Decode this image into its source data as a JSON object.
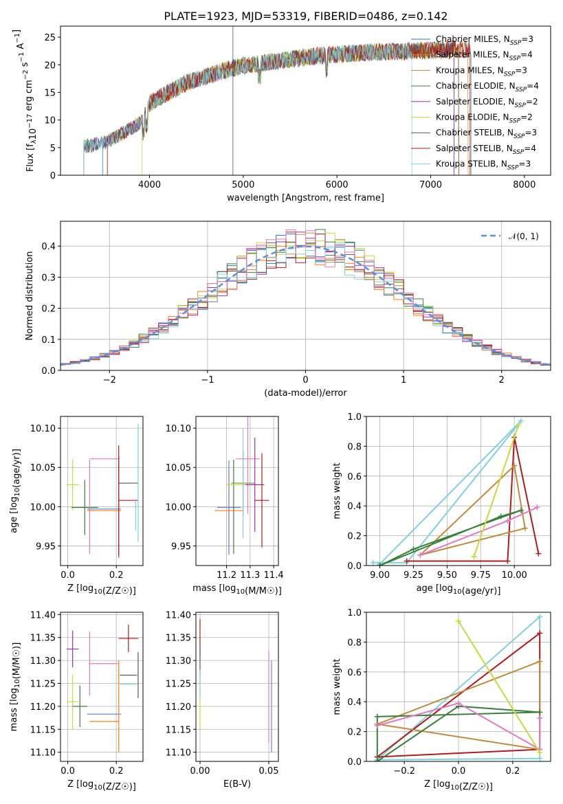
{
  "colors": {
    "chabrier_miles": "#1f77b4",
    "salpeter_miles": "#ff7f0e",
    "kroupa_miles": "#bf8a3a",
    "chabrier_elodie": "#3a7f3a",
    "salpeter_elodie": "#9b2fae",
    "kroupa_elodie": "#c8d93c",
    "chabrier_stelib": "#555555",
    "salpeter_stelib": "#b01b1b",
    "kroupa_stelib": "#7fd0de",
    "gauss": "#5b8fd8",
    "pink": "#e377c2",
    "olive": "#6d8f3a",
    "blue2": "#6f86d6"
  },
  "title": "PLATE=1923, MJD=53319, FIBERID=0486, z=0.142",
  "chart_data": [
    {
      "type": "line",
      "xlabel": "wavelength [Angstrom, rest frame]",
      "ylabel": "Flux [f_λ10^-17 erg cm^-2 s^-1 A^-1]",
      "xlim": [
        3050,
        8280
      ],
      "ylim": [
        0,
        27
      ],
      "xticks": [
        "4000",
        "5000",
        "6000",
        "7000",
        "8000"
      ],
      "yticks": [
        "0",
        "5",
        "10",
        "15",
        "20",
        "25"
      ],
      "legend_position": "top-right",
      "series": [
        {
          "name": "Chabrier MILES, N_SSP=3",
          "color": "chabrier_miles"
        },
        {
          "name": "Salpeter MILES, N_SSP=4",
          "color": "salpeter_miles"
        },
        {
          "name": "Kroupa MILES, N_SSP=3",
          "color": "kroupa_miles"
        },
        {
          "name": "Chabrier ELODIE, N_SSP=4",
          "color": "chabrier_elodie"
        },
        {
          "name": "Salpeter ELODIE, N_SSP=2",
          "color": "salpeter_elodie"
        },
        {
          "name": "Kroupa ELODIE, N_SSP=2",
          "color": "kroupa_elodie"
        },
        {
          "name": "Chabrier STELIB, N_SSP=3",
          "color": "chabrier_stelib"
        },
        {
          "name": "Salpeter STELIB, N_SSP=4",
          "color": "salpeter_stelib"
        },
        {
          "name": "Kroupa STELIB, N_SSP=3",
          "color": "kroupa_stelib"
        }
      ],
      "continuum": {
        "x": [
          3300,
          3500,
          3600,
          3750,
          3900,
          4000,
          4200,
          4400,
          4600,
          4800,
          5000,
          5200,
          5500,
          5800,
          6100,
          6400,
          6700,
          7000,
          7200
        ],
        "y": [
          5.2,
          5.8,
          6.5,
          8.0,
          9.5,
          13.0,
          15.0,
          16.8,
          17.8,
          19.0,
          19.8,
          20.3,
          21.0,
          21.6,
          22.0,
          22.3,
          22.4,
          22.6,
          22.8
        ]
      }
    },
    {
      "type": "histogram",
      "xlabel": "(data-model)/error",
      "ylabel": "Normed distribution",
      "xlim": [
        -2.5,
        2.5
      ],
      "ylim": [
        0,
        0.48
      ],
      "xticks": [
        "−2",
        "−1",
        "0",
        "1",
        "2"
      ],
      "yticks": [
        "0.0",
        "0.1",
        "0.2",
        "0.3",
        "0.4"
      ],
      "legend": "𝒩(0, 1)",
      "legend_position": "top-right",
      "bin_width": 0.1,
      "gaussian": {
        "mu": 0,
        "sigma": 1
      }
    },
    {
      "type": "scatter",
      "xlabel": "Z [log10(Z/Z☉)]",
      "ylabel": "age  [log10(age/yr)]",
      "xlim": [
        -0.03,
        0.31
      ],
      "ylim": [
        9.925,
        10.115
      ],
      "xticks": [
        0.0,
        0.2
      ],
      "yticks": [
        9.95,
        10.0,
        10.05,
        10.1
      ],
      "points": [
        {
          "x": 0.02,
          "y": 10.028,
          "xerr": 0.025,
          "yerr": 0.032,
          "color": "kroupa_elodie"
        },
        {
          "x": 0.07,
          "y": 10.028,
          "xerr": 0.0,
          "yerr": 0.0,
          "color": "chabrier_stelib"
        },
        {
          "x": 0.07,
          "y": 9.999,
          "xerr": 0.055,
          "yerr": 0.035,
          "color": "chabrier_elodie"
        },
        {
          "x": 0.15,
          "y": 10.061,
          "xerr": 0.06,
          "yerr": 0.0,
          "color": "pink"
        },
        {
          "x": 0.09,
          "y": 10.0,
          "xerr": 0.0,
          "yerr": 0.06,
          "color": "pink"
        },
        {
          "x": 0.15,
          "y": 9.997,
          "xerr": 0.07,
          "yerr": 0.0,
          "color": "blue2"
        },
        {
          "x": 0.21,
          "y": 10.0,
          "xerr": 0.0,
          "yerr": 0.065,
          "color": "salpeter_elodie"
        },
        {
          "x": 0.15,
          "y": 9.995,
          "xerr": 0.07,
          "yerr": 0.0,
          "color": "salpeter_miles"
        },
        {
          "x": 0.25,
          "y": 10.008,
          "xerr": 0.04,
          "yerr": 0.0,
          "color": "salpeter_stelib"
        },
        {
          "x": 0.21,
          "y": 10.008,
          "xerr": 0.0,
          "yerr": 0.07,
          "color": "salpeter_stelib"
        },
        {
          "x": 0.25,
          "y": 10.03,
          "xerr": 0.04,
          "yerr": 0.0,
          "color": "chabrier_stelib"
        },
        {
          "x": 0.29,
          "y": 10.03,
          "xerr": 0.0,
          "yerr": 0.075,
          "color": "kroupa_stelib"
        },
        {
          "x": 0.28,
          "y": 9.99,
          "xerr": 0.0,
          "yerr": 0.02,
          "color": "kroupa_stelib"
        }
      ]
    },
    {
      "type": "scatter",
      "xlabel": "mass [log10(M/M☉)]",
      "ylabel": "",
      "xlim": [
        11.07,
        11.42
      ],
      "ylim": [
        9.925,
        10.115
      ],
      "xticks": [
        11.2,
        11.3,
        11.4
      ],
      "yticks": [
        9.95,
        10.0,
        10.05,
        10.1
      ],
      "points": [
        {
          "x": 11.21,
          "y": 9.995,
          "xerr": 0.06,
          "yerr": 0.055,
          "color": "salpeter_miles"
        },
        {
          "x": 11.21,
          "y": 9.999,
          "xerr": 0.05,
          "yerr": 0.06,
          "color": "blue2"
        },
        {
          "x": 11.23,
          "y": 10.0,
          "xerr": 0.0,
          "yerr": 0.06,
          "color": "chabrier_elodie"
        },
        {
          "x": 11.25,
          "y": 10.028,
          "xerr": 0.05,
          "yerr": 0.0,
          "color": "kroupa_elodie"
        },
        {
          "x": 11.27,
          "y": 10.03,
          "xerr": 0.05,
          "yerr": 0.04,
          "color": "olive"
        },
        {
          "x": 11.29,
          "y": 10.061,
          "xerr": 0.05,
          "yerr": 0.07,
          "color": "pink"
        },
        {
          "x": 11.27,
          "y": 10.03,
          "xerr": 0.0,
          "yerr": 0.07,
          "color": "kroupa_stelib"
        },
        {
          "x": 11.32,
          "y": 10.028,
          "xerr": 0.04,
          "yerr": 0.06,
          "color": "salpeter_elodie"
        },
        {
          "x": 11.35,
          "y": 10.008,
          "xerr": 0.03,
          "yerr": 0.06,
          "color": "salpeter_stelib"
        }
      ]
    },
    {
      "type": "line",
      "xlabel": "age  [log10(age/yr)]",
      "ylabel": "mass weight",
      "xlim": [
        8.9,
        10.27
      ],
      "ylim": [
        0,
        1.0
      ],
      "xticks": [
        "9.00",
        "9.25",
        "9.50",
        "9.75",
        "10.00"
      ],
      "yticks": [
        "0.0",
        "0.2",
        "0.4",
        "0.6",
        "0.8",
        "1.0"
      ],
      "grid": true,
      "series": [
        {
          "color": "kroupa_stelib",
          "x": [
            8.95,
            9.2,
            10.05,
            9.0
          ],
          "y": [
            0.02,
            0.02,
            0.97,
            0.01
          ]
        },
        {
          "color": "salpeter_stelib",
          "x": [
            9.2,
            9.95,
            10.0,
            10.18
          ],
          "y": [
            0.03,
            0.03,
            0.86,
            0.08
          ]
        },
        {
          "color": "kroupa_miles",
          "x": [
            9.3,
            10.0,
            10.08,
            9.3
          ],
          "y": [
            0.07,
            0.67,
            0.25,
            0.07
          ]
        },
        {
          "color": "chabrier_elodie",
          "x": [
            9.0,
            9.25,
            10.05,
            9.9,
            9.0
          ],
          "y": [
            0.0,
            0.11,
            0.37,
            0.33,
            0.0
          ]
        },
        {
          "color": "pink",
          "x": [
            9.3,
            9.95,
            10.17
          ],
          "y": [
            0.07,
            0.3,
            0.39
          ]
        },
        {
          "color": "kroupa_elodie",
          "x": [
            9.7,
            10.03,
            9.7
          ],
          "y": [
            0.06,
            0.94,
            0.06
          ]
        }
      ]
    },
    {
      "type": "scatter",
      "xlabel": "Z [log10(Z/Z☉)]",
      "ylabel": "mass [log10(M/M☉)]",
      "xlim": [
        -0.03,
        0.31
      ],
      "ylim": [
        11.08,
        11.405
      ],
      "xticks": [
        0.0,
        0.2
      ],
      "yticks": [
        11.1,
        11.15,
        11.2,
        11.25,
        11.3,
        11.35,
        11.4
      ],
      "points": [
        {
          "x": 0.02,
          "y": 11.325,
          "xerr": 0.025,
          "yerr": 0.04,
          "color": "salpeter_elodie"
        },
        {
          "x": 0.02,
          "y": 11.21,
          "xerr": 0.025,
          "yerr": 0.06,
          "color": "kroupa_elodie"
        },
        {
          "x": 0.05,
          "y": 11.2,
          "xerr": 0.03,
          "yerr": 0.045,
          "color": "chabrier_elodie"
        },
        {
          "x": 0.15,
          "y": 11.293,
          "xerr": 0.06,
          "yerr": 0.0,
          "color": "pink"
        },
        {
          "x": 0.09,
          "y": 11.293,
          "xerr": 0.0,
          "yerr": 0.07,
          "color": "pink"
        },
        {
          "x": 0.15,
          "y": 11.183,
          "xerr": 0.07,
          "yerr": 0.0,
          "color": "blue2"
        },
        {
          "x": 0.15,
          "y": 11.167,
          "xerr": 0.06,
          "yerr": 0.0,
          "color": "salpeter_miles"
        },
        {
          "x": 0.21,
          "y": 11.2,
          "xerr": 0.0,
          "yerr": 0.1,
          "color": "salpeter_miles"
        },
        {
          "x": 0.25,
          "y": 11.348,
          "xerr": 0.04,
          "yerr": 0.03,
          "color": "salpeter_stelib"
        },
        {
          "x": 0.25,
          "y": 11.268,
          "xerr": 0.035,
          "yerr": 0.0,
          "color": "chabrier_stelib"
        },
        {
          "x": 0.29,
          "y": 11.268,
          "xerr": 0.0,
          "yerr": 0.05,
          "color": "chabrier_stelib"
        },
        {
          "x": 0.25,
          "y": 11.248,
          "xerr": 0.035,
          "yerr": 0.0,
          "color": "kroupa_stelib"
        }
      ]
    },
    {
      "type": "scatter",
      "xlabel": "E(B-V)",
      "ylabel": "",
      "xlim": [
        -0.003,
        0.057
      ],
      "ylim": [
        11.08,
        11.405
      ],
      "xticks": [
        "0.00",
        "0.05"
      ],
      "yticks": [
        11.1,
        11.15,
        11.2,
        11.25,
        11.3,
        11.35,
        11.4
      ],
      "points": [
        {
          "x": 0.0,
          "y": 11.35,
          "xerr": 0.0,
          "yerr": 0.04,
          "color": "salpeter_stelib"
        },
        {
          "x": 0.0,
          "y": 11.3,
          "xerr": 0.0,
          "yerr": 0.035,
          "color": "chabrier_stelib"
        },
        {
          "x": 0.0,
          "y": 11.21,
          "xerr": 0.0,
          "yerr": 0.06,
          "color": "kroupa_elodie"
        },
        {
          "x": 0.0,
          "y": 11.25,
          "xerr": 0.0,
          "yerr": 0.03,
          "color": "kroupa_stelib"
        },
        {
          "x": 0.05,
          "y": 11.22,
          "xerr": 0.0,
          "yerr": 0.1,
          "color": "pink"
        },
        {
          "x": 0.052,
          "y": 11.2,
          "xerr": 0.0,
          "yerr": 0.1,
          "color": "blue2"
        }
      ]
    },
    {
      "type": "line",
      "xlabel": "Z [log10(Z/Z☉)]",
      "ylabel": "mass weight",
      "xlim": [
        -0.34,
        0.34
      ],
      "ylim": [
        0,
        1.0
      ],
      "xticks": [
        "−0.2",
        "0.0",
        "0.2"
      ],
      "yticks": [
        "0.0",
        "0.2",
        "0.4",
        "0.6",
        "0.8",
        "1.0"
      ],
      "grid": true,
      "series": [
        {
          "color": "kroupa_stelib",
          "x": [
            -0.3,
            0.3,
            0.3,
            -0.3
          ],
          "y": [
            0.01,
            0.97,
            0.02,
            0.01
          ]
        },
        {
          "color": "salpeter_stelib",
          "x": [
            -0.3,
            0.3,
            0.3,
            -0.3
          ],
          "y": [
            0.03,
            0.86,
            0.08,
            0.03
          ]
        },
        {
          "color": "kroupa_miles",
          "x": [
            -0.3,
            0.3,
            0.3,
            -0.3
          ],
          "y": [
            0.25,
            0.67,
            0.08,
            0.25
          ]
        },
        {
          "color": "chabrier_elodie",
          "x": [
            -0.3,
            0.0,
            0.3,
            -0.3,
            -0.3
          ],
          "y": [
            0.0,
            0.37,
            0.33,
            0.3,
            0.0
          ]
        },
        {
          "color": "pink",
          "x": [
            -0.3,
            0.0,
            0.3,
            0.3
          ],
          "y": [
            0.24,
            0.39,
            0.08,
            0.29
          ]
        },
        {
          "color": "kroupa_elodie",
          "x": [
            0.0,
            0.3,
            0.0
          ],
          "y": [
            0.94,
            0.06,
            0.94
          ]
        }
      ]
    }
  ]
}
